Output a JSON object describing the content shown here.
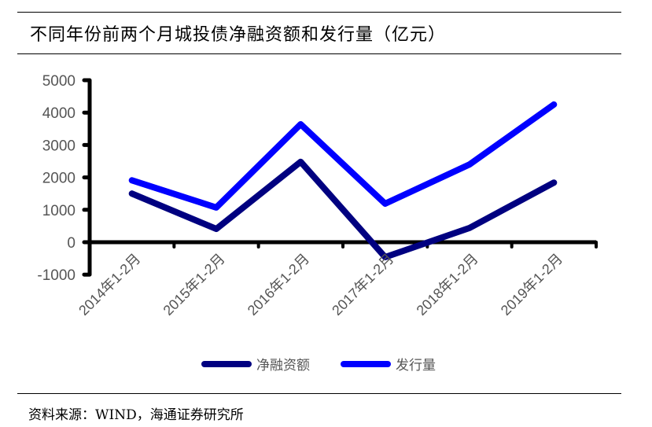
{
  "header": {
    "title": "不同年份前两个月城投债净融资额和发行量（亿元）"
  },
  "footer": {
    "source": "资料来源：WIND，海通证券研究所"
  },
  "legend": {
    "items": [
      {
        "label": "净融资额",
        "color": "#000080"
      },
      {
        "label": "发行量",
        "color": "#0000ff"
      }
    ]
  },
  "chart_data": {
    "type": "line",
    "title": "不同年份前两个月城投债净融资额和发行量（亿元）",
    "xlabel": "",
    "ylabel": "",
    "categories": [
      "2014年1-2月",
      "2015年1-2月",
      "2016年1-2月",
      "2017年1-2月",
      "2018年1-2月",
      "2019年1-2月"
    ],
    "series": [
      {
        "name": "净融资额",
        "color": "#000080",
        "values": [
          1500,
          410,
          2480,
          -460,
          440,
          1840
        ]
      },
      {
        "name": "发行量",
        "color": "#0000ff",
        "values": [
          1910,
          1070,
          3640,
          1190,
          2400,
          4250
        ]
      }
    ],
    "ylim": [
      -1000,
      5000
    ],
    "yticks": [
      "5000",
      "4000",
      "3000",
      "2000",
      "1000",
      "0",
      "-1000"
    ],
    "grid": false,
    "legend_position": "bottom"
  }
}
